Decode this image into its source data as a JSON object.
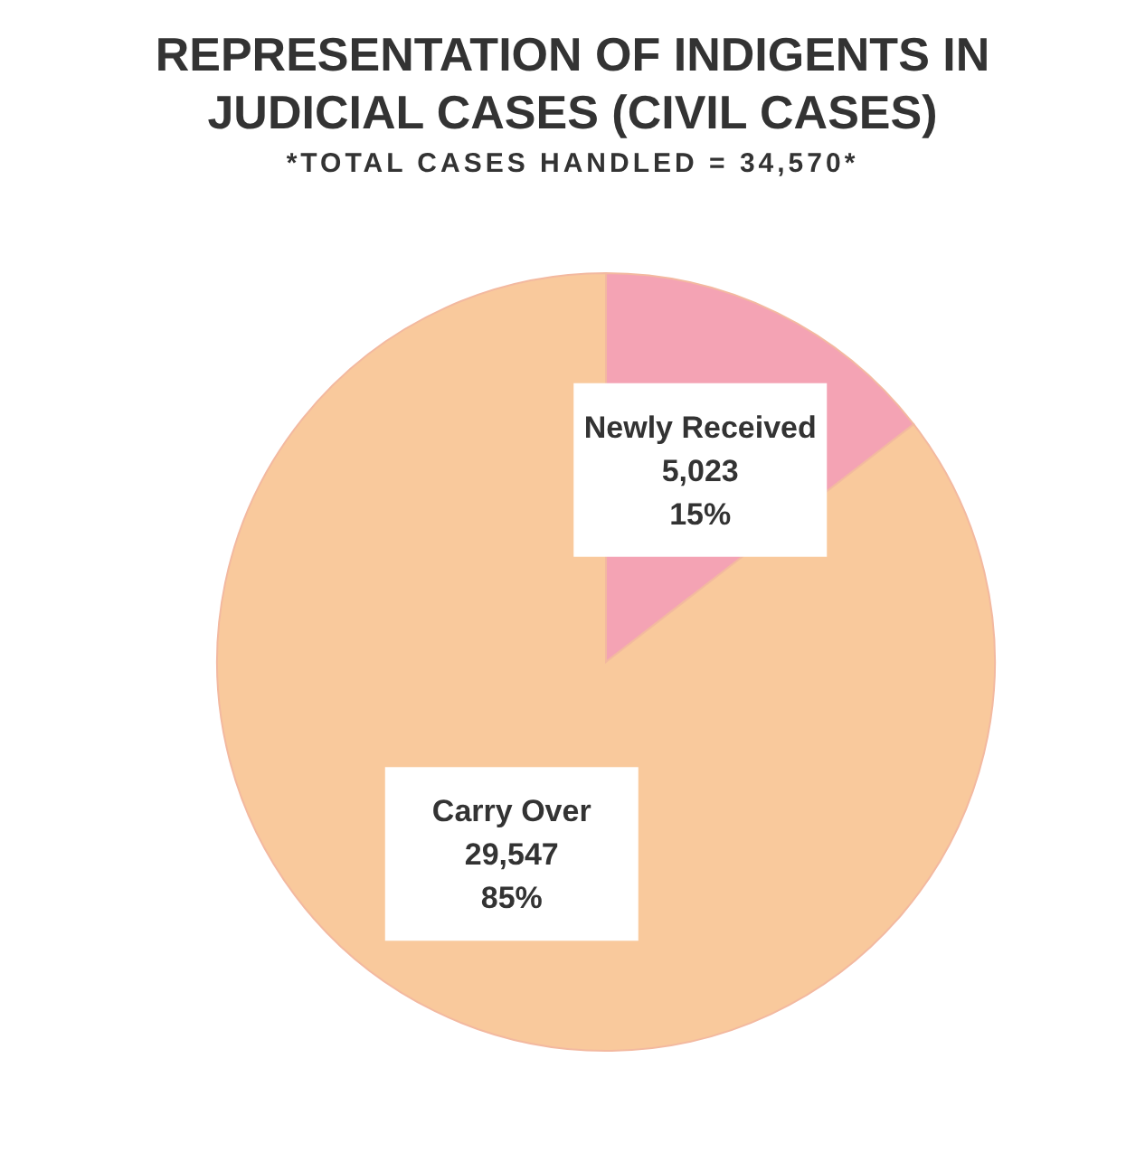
{
  "chart_data": {
    "type": "pie",
    "title": "REPRESENTATION OF INDIGENTS IN JUDICIAL CASES (CIVIL CASES)",
    "subtitle": "*TOTAL CASES HANDLED = 34,570*",
    "categories": [
      "Newly Received",
      "Carry Over"
    ],
    "values": [
      5023,
      29547
    ],
    "colors": [
      "#f4a3b4",
      "#f9c99c"
    ],
    "value_labels": [
      "5,023\n15%",
      "29,547\n85%"
    ],
    "legend": false
  }
}
